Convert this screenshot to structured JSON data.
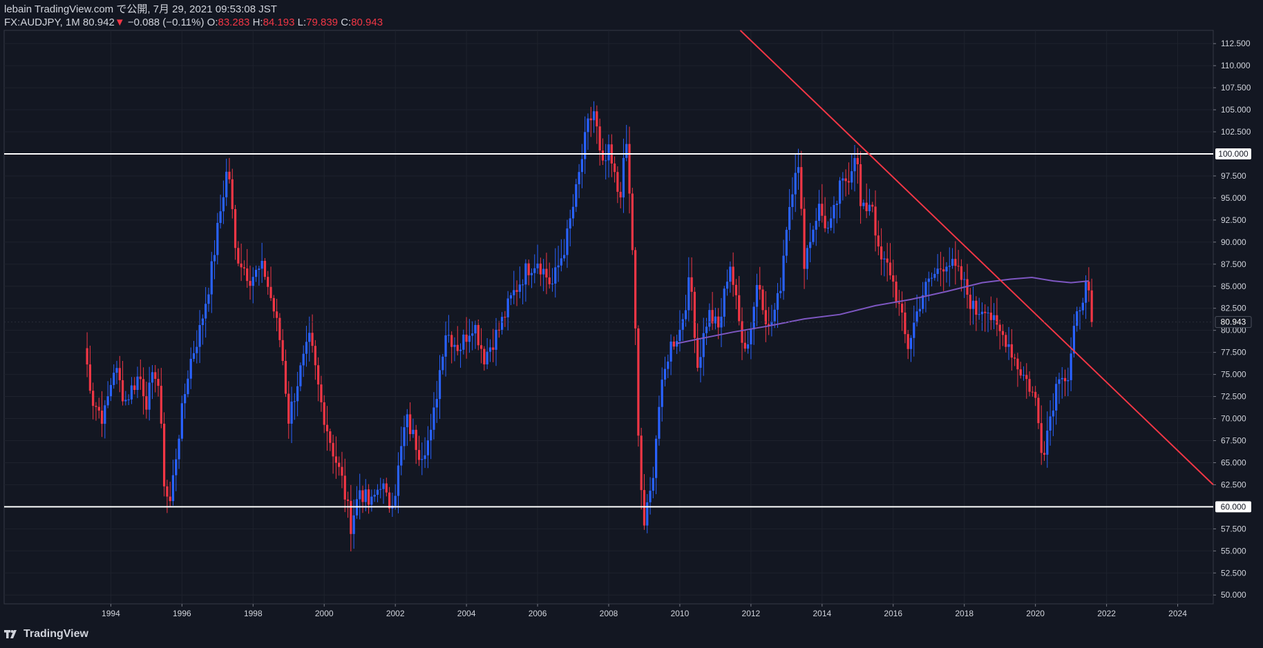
{
  "header": {
    "line1": "lebain TradingView.com で公開, 7月 29, 2021 09:53:08 JST",
    "symbol": "FX:AUDJPY, 1M 80.942",
    "change_arrow": "▼",
    "change": "−0.088 (−0.11%)",
    "o_label": "O:",
    "o_value": "83.283",
    "h_label": "H:",
    "h_value": "84.193",
    "l_label": "L:",
    "l_value": "79.839",
    "c_label": "C:",
    "c_value": "80.943"
  },
  "brand": {
    "name": "TradingView",
    "icon": "tradingview-logo-icon"
  },
  "colors": {
    "bg": "#131722",
    "up": "#2962ff",
    "down": "#f23645",
    "ma": "#7e57c2",
    "hline": "#ffffff",
    "trend": "#f23645",
    "grid": "#1e222d",
    "axis": "#787b86"
  },
  "chart_data": {
    "type": "candlestick",
    "symbol": "FX:AUDJPY",
    "interval": "1M",
    "x_axis": {
      "min": 1991.0,
      "max": 2025.0,
      "tick_labels": [
        "1994",
        "1996",
        "1998",
        "2000",
        "2002",
        "2004",
        "2006",
        "2008",
        "2010",
        "2012",
        "2014",
        "2016",
        "2018",
        "2020",
        "2022",
        "2024"
      ]
    },
    "y_axis": {
      "min": 49.0,
      "max": 114.0,
      "tick_labels": [
        "112.500",
        "110.000",
        "107.500",
        "105.000",
        "102.500",
        "97.500",
        "95.000",
        "92.500",
        "90.000",
        "87.500",
        "85.000",
        "82.500",
        "80.000",
        "77.500",
        "75.000",
        "72.500",
        "70.000",
        "67.500",
        "65.000",
        "62.500",
        "57.500",
        "55.000",
        "52.500",
        "50.000"
      ]
    },
    "key_path": [
      [
        1993.25,
        78
      ],
      [
        1993.5,
        72
      ],
      [
        1993.8,
        70
      ],
      [
        1994.1,
        76
      ],
      [
        1994.4,
        72
      ],
      [
        1994.8,
        75
      ],
      [
        1995.0,
        72
      ],
      [
        1995.3,
        76
      ],
      [
        1995.5,
        63
      ],
      [
        1995.65,
        60
      ],
      [
        1995.9,
        68
      ],
      [
        1996.2,
        76
      ],
      [
        1996.5,
        80
      ],
      [
        1996.8,
        86
      ],
      [
        1997.1,
        94
      ],
      [
        1997.3,
        99
      ],
      [
        1997.5,
        89
      ],
      [
        1997.9,
        86
      ],
      [
        1998.3,
        87
      ],
      [
        1998.6,
        82
      ],
      [
        1998.8,
        78
      ],
      [
        1999.0,
        70
      ],
      [
        1999.3,
        75
      ],
      [
        1999.6,
        79
      ],
      [
        1999.9,
        72
      ],
      [
        2000.2,
        67
      ],
      [
        2000.5,
        63
      ],
      [
        2000.75,
        58
      ],
      [
        2001.0,
        62
      ],
      [
        2001.3,
        60
      ],
      [
        2001.6,
        63
      ],
      [
        2001.8,
        60
      ],
      [
        2002.0,
        62
      ],
      [
        2002.3,
        70
      ],
      [
        2002.7,
        66
      ],
      [
        2003.0,
        68
      ],
      [
        2003.4,
        80
      ],
      [
        2003.8,
        78
      ],
      [
        2004.2,
        81
      ],
      [
        2004.5,
        77
      ],
      [
        2004.9,
        80
      ],
      [
        2005.3,
        84
      ],
      [
        2005.7,
        87
      ],
      [
        2006.0,
        88
      ],
      [
        2006.4,
        85
      ],
      [
        2006.8,
        90
      ],
      [
        2007.1,
        96
      ],
      [
        2007.4,
        103
      ],
      [
        2007.6,
        105
      ],
      [
        2007.8,
        98
      ],
      [
        2008.0,
        100
      ],
      [
        2008.3,
        95
      ],
      [
        2008.5,
        101
      ],
      [
        2008.7,
        87
      ],
      [
        2008.85,
        65
      ],
      [
        2009.0,
        58
      ],
      [
        2009.2,
        62
      ],
      [
        2009.4,
        71
      ],
      [
        2009.7,
        78
      ],
      [
        2010.0,
        80
      ],
      [
        2010.3,
        86
      ],
      [
        2010.5,
        76
      ],
      [
        2010.8,
        82
      ],
      [
        2011.1,
        80
      ],
      [
        2011.4,
        88
      ],
      [
        2011.7,
        80
      ],
      [
        2011.9,
        78
      ],
      [
        2012.2,
        86
      ],
      [
        2012.5,
        80
      ],
      [
        2012.8,
        84
      ],
      [
        2013.0,
        92
      ],
      [
        2013.3,
        100
      ],
      [
        2013.5,
        88
      ],
      [
        2013.9,
        94
      ],
      [
        2014.2,
        91
      ],
      [
        2014.5,
        96
      ],
      [
        2014.8,
        98
      ],
      [
        2014.95,
        101
      ],
      [
        2015.1,
        93
      ],
      [
        2015.4,
        95
      ],
      [
        2015.6,
        88
      ],
      [
        2015.9,
        87
      ],
      [
        2016.2,
        82
      ],
      [
        2016.4,
        78
      ],
      [
        2016.8,
        84
      ],
      [
        2017.1,
        86
      ],
      [
        2017.5,
        88
      ],
      [
        2017.9,
        86
      ],
      [
        2018.3,
        82
      ],
      [
        2018.6,
        83
      ],
      [
        2018.9,
        80
      ],
      [
        2019.2,
        79
      ],
      [
        2019.5,
        76
      ],
      [
        2019.8,
        74
      ],
      [
        2020.0,
        72
      ],
      [
        2020.2,
        66
      ],
      [
        2020.4,
        70
      ],
      [
        2020.7,
        76
      ],
      [
        2020.9,
        74
      ],
      [
        2021.1,
        80
      ],
      [
        2021.3,
        84
      ],
      [
        2021.45,
        85
      ],
      [
        2021.58,
        80.94
      ]
    ],
    "moving_average": [
      [
        2009.9,
        78.5
      ],
      [
        2010.5,
        79
      ],
      [
        2011.5,
        79.8
      ],
      [
        2012.5,
        80.5
      ],
      [
        2013.5,
        81.3
      ],
      [
        2014.5,
        81.8
      ],
      [
        2015.5,
        82.8
      ],
      [
        2016.5,
        83.5
      ],
      [
        2017.5,
        84.4
      ],
      [
        2018.5,
        85.4
      ],
      [
        2019.3,
        85.8
      ],
      [
        2019.9,
        86.0
      ],
      [
        2020.5,
        85.6
      ],
      [
        2021.0,
        85.4
      ],
      [
        2021.5,
        85.6
      ]
    ],
    "horizontal_lines": [
      100.0,
      60.0
    ],
    "trend_line": {
      "start": [
        2011.7,
        114.0
      ],
      "end": [
        2025.0,
        62.5
      ]
    },
    "last_price": "80.943",
    "hline_labels": [
      "100.000",
      "60.000"
    ]
  }
}
